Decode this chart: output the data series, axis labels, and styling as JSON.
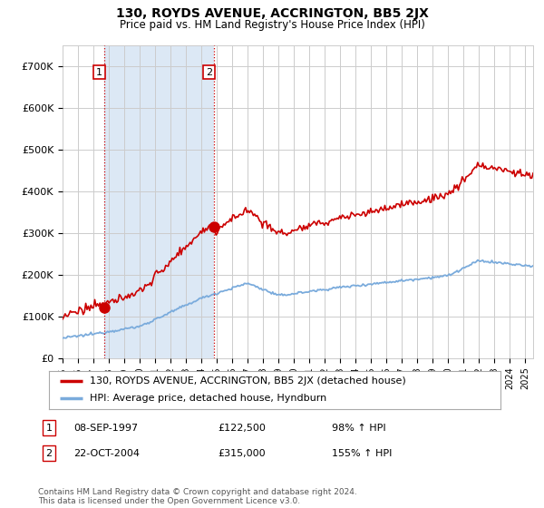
{
  "title": "130, ROYDS AVENUE, ACCRINGTON, BB5 2JX",
  "subtitle": "Price paid vs. HM Land Registry's House Price Index (HPI)",
  "legend_line1": "130, ROYDS AVENUE, ACCRINGTON, BB5 2JX (detached house)",
  "legend_line2": "HPI: Average price, detached house, Hyndburn",
  "annotation1_label": "1",
  "annotation1_date": "08-SEP-1997",
  "annotation1_price": "£122,500",
  "annotation1_hpi": "98% ↑ HPI",
  "annotation1_year": 1997.69,
  "annotation1_value": 122500,
  "annotation2_label": "2",
  "annotation2_date": "22-OCT-2004",
  "annotation2_price": "£315,000",
  "annotation2_hpi": "155% ↑ HPI",
  "annotation2_year": 2004.81,
  "annotation2_value": 315000,
  "yticks": [
    0,
    100000,
    200000,
    300000,
    400000,
    500000,
    600000,
    700000
  ],
  "ytick_labels": [
    "£0",
    "£100K",
    "£200K",
    "£300K",
    "£400K",
    "£500K",
    "£600K",
    "£700K"
  ],
  "xmin": 1995.0,
  "xmax": 2025.5,
  "ymin": 0,
  "ymax": 750000,
  "line_color_red": "#cc0000",
  "line_color_blue": "#7aabdc",
  "shade_color": "#dce8f5",
  "grid_color": "#cccccc",
  "background_color": "#ffffff",
  "footer_text": "Contains HM Land Registry data © Crown copyright and database right 2024.\nThis data is licensed under the Open Government Licence v3.0.",
  "xticks": [
    1995,
    1996,
    1997,
    1998,
    1999,
    2000,
    2001,
    2002,
    2003,
    2004,
    2005,
    2006,
    2007,
    2008,
    2009,
    2010,
    2011,
    2012,
    2013,
    2014,
    2015,
    2016,
    2017,
    2018,
    2019,
    2020,
    2021,
    2022,
    2023,
    2024,
    2025
  ]
}
